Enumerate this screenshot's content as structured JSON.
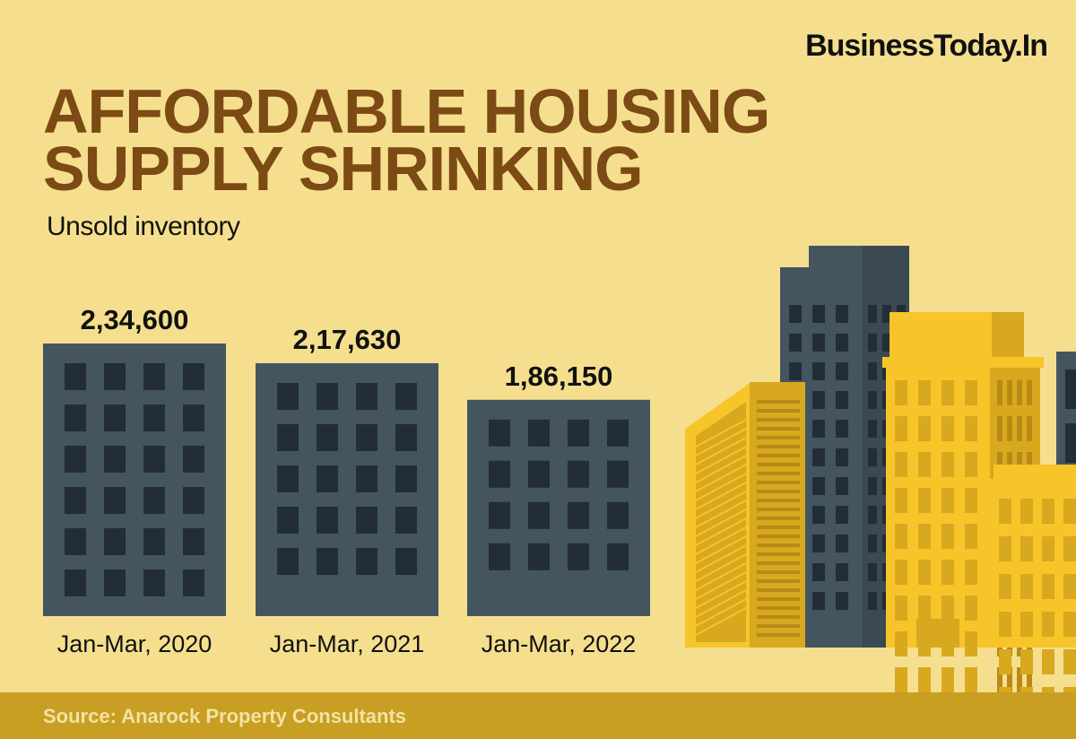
{
  "brand": "BusinessToday.In",
  "title_lines": [
    "AFFORDABLE HOUSING",
    "SUPPLY SHRINKING"
  ],
  "subtitle": "Unsold inventory",
  "source": "Source: Anarock Property Consultants",
  "colors": {
    "background": "#f5df8e",
    "title": "#7c4a14",
    "bar": "#445560",
    "window": "#222d35",
    "footer": "#c89f22",
    "footer_text": "#f3e2a4",
    "building_yellow": "#f7c52a",
    "building_gold": "#d8a81f"
  },
  "chart_data": {
    "type": "bar",
    "title": "AFFORDABLE HOUSING SUPPLY SHRINKING",
    "ylabel": "Unsold inventory",
    "categories": [
      "Jan-Mar, 2020",
      "Jan-Mar, 2021",
      "Jan-Mar, 2022"
    ],
    "values": [
      234600,
      217630,
      186150
    ],
    "value_labels": [
      "2,34,600",
      "2,17,630",
      "1,86,150"
    ],
    "grid": false,
    "legend": "none"
  }
}
